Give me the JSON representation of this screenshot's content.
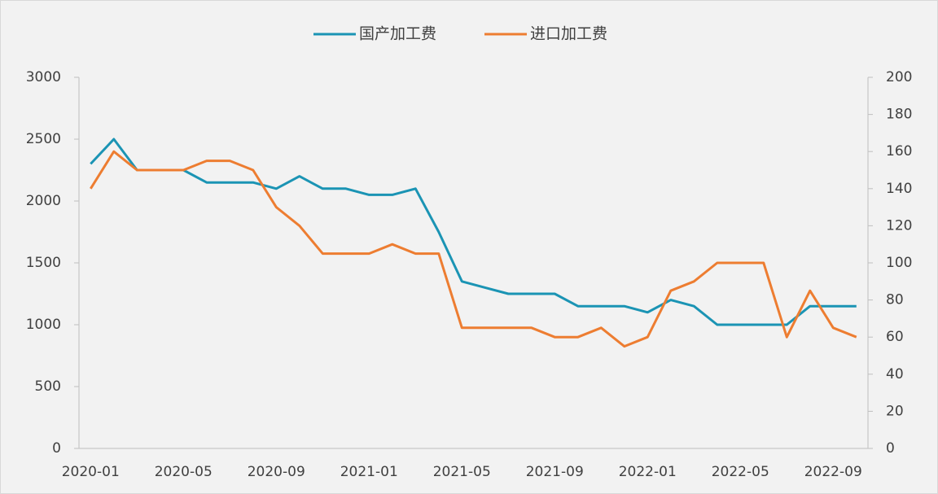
{
  "chart_data": {
    "type": "line",
    "categories": [
      "2020-01",
      null,
      null,
      null,
      "2020-05",
      null,
      null,
      null,
      "2020-09",
      null,
      null,
      null,
      "2021-01",
      null,
      null,
      null,
      "2021-05",
      null,
      null,
      null,
      "2021-09",
      null,
      null,
      null,
      "2022-01",
      null,
      null,
      null,
      "2022-05",
      null,
      null,
      null,
      "2022-09",
      null
    ],
    "series": [
      {
        "name": "国产加工费",
        "color": "#1b94b4",
        "values": [
          2300,
          2500,
          2250,
          2250,
          2250,
          2150,
          2150,
          2150,
          2100,
          2200,
          2100,
          2100,
          2050,
          2050,
          2100,
          1750,
          1350,
          1300,
          1250,
          1250,
          1250,
          1150,
          1150,
          1150,
          1100,
          1200,
          1150,
          1000,
          1000,
          1000,
          1000,
          1150,
          1150,
          1150
        ]
      },
      {
        "name": "进口加工费",
        "color": "#ed7d31",
        "axis": "y2",
        "values": [
          140,
          160,
          150,
          150,
          150,
          155,
          155,
          150,
          130,
          120,
          105,
          105,
          105,
          110,
          105,
          105,
          65,
          65,
          65,
          65,
          60,
          60,
          65,
          55,
          60,
          85,
          90,
          100,
          100,
          100,
          60,
          85,
          65,
          60
        ]
      }
    ],
    "ylim": [
      0,
      3000
    ],
    "yticks": [
      0,
      500,
      1000,
      1500,
      2000,
      2500,
      3000
    ],
    "y2lim": [
      0,
      200
    ],
    "y2ticks": [
      0,
      20,
      40,
      60,
      80,
      100,
      120,
      140,
      160,
      180,
      200
    ],
    "legend": "top"
  }
}
